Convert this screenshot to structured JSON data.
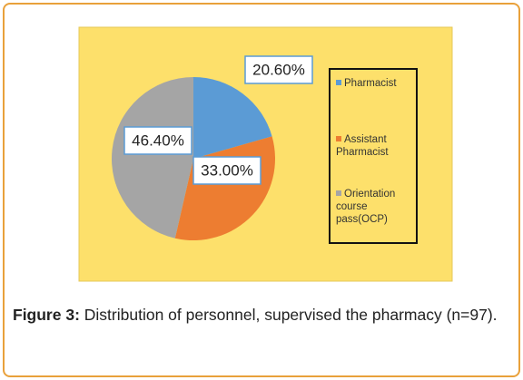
{
  "chart_data": {
    "type": "pie",
    "categories": [
      "Pharmacist",
      "Assistant Pharmacist",
      "Orientation course pass(OCP)"
    ],
    "values": [
      20.6,
      33.0,
      46.4
    ],
    "value_labels": [
      "20.60%",
      "33.00%",
      "46.40%"
    ],
    "colors": [
      "#5b9bd5",
      "#ed7d31",
      "#a5a5a5"
    ],
    "legend": "right",
    "caption": {
      "label": "Figure 3:",
      "text": "Distribution of personnel, supervised the pharmacy (n=97)."
    }
  }
}
